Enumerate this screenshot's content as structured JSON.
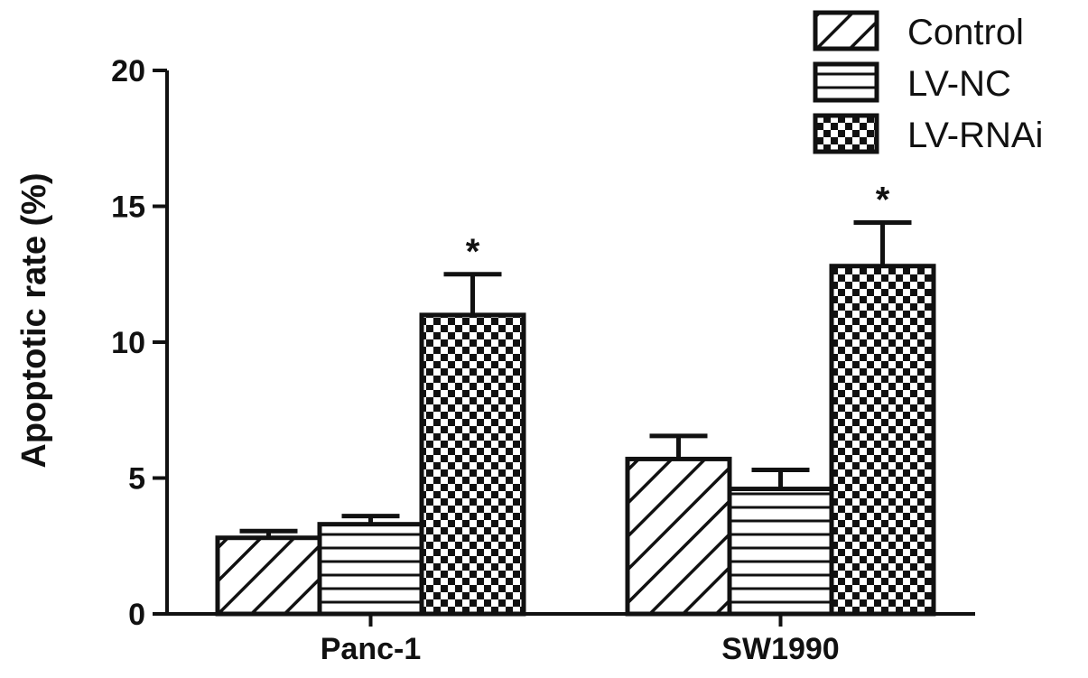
{
  "chart_data": {
    "type": "bar",
    "categories": [
      "Panc-1",
      "SW1990"
    ],
    "series": [
      {
        "name": "Control",
        "pattern": "diagonal",
        "values": [
          2.8,
          5.7
        ],
        "errors": [
          0.25,
          0.85
        ]
      },
      {
        "name": "LV-NC",
        "pattern": "horizontal",
        "values": [
          3.3,
          4.6
        ],
        "errors": [
          0.3,
          0.7
        ]
      },
      {
        "name": "LV-RNAi",
        "pattern": "checker",
        "values": [
          11.0,
          12.8
        ],
        "errors": [
          1.5,
          1.6
        ]
      }
    ],
    "significance": [
      {
        "series": "LV-RNAi",
        "category": "Panc-1",
        "label": "*"
      },
      {
        "series": "LV-RNAi",
        "category": "SW1990",
        "label": "*"
      }
    ],
    "title": "",
    "xlabel": "",
    "ylabel": "Apoptotic rate (%)",
    "ylim": [
      0,
      20
    ],
    "yticks": [
      0,
      5,
      10,
      15,
      20
    ],
    "grid": false,
    "legend": "top-right",
    "colors": {
      "stroke": "#111111",
      "fill": "#ffffff"
    }
  }
}
